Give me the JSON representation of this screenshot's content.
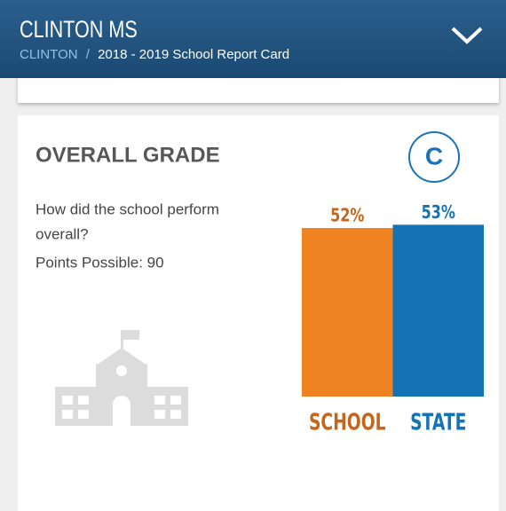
{
  "header": {
    "title": "CLINTON MS",
    "breadcrumb": [
      "CLINTON",
      "2018 - 2019 School Report Card"
    ],
    "separator": "/"
  },
  "card": {
    "title": "OVERALL GRADE",
    "grade": "C",
    "question": [
      "How did the school perform",
      "overall?"
    ],
    "points": "Points Possible: 90"
  },
  "chart_data": {
    "type": "bar",
    "categories": [
      "SCHOOL",
      "STATE"
    ],
    "values": [
      52,
      53
    ],
    "value_labels": [
      "52%",
      "53%"
    ],
    "colors": [
      "#f08321",
      "#1473b5"
    ],
    "label_colors": [
      "#c4661c",
      "#1473b5"
    ]
  }
}
